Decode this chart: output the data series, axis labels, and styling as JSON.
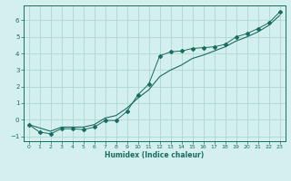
{
  "xlabel": "Humidex (Indice chaleur)",
  "ylabel": "",
  "bg_color": "#d4f0ee",
  "grid_color": "#b0d8d4",
  "line_color": "#1a6b60",
  "x_data": [
    0,
    1,
    2,
    3,
    4,
    5,
    6,
    7,
    8,
    9,
    10,
    11,
    12,
    13,
    14,
    15,
    16,
    17,
    18,
    19,
    20,
    21,
    22,
    23
  ],
  "y_data": [
    -0.3,
    -0.75,
    -0.85,
    -0.55,
    -0.55,
    -0.6,
    -0.45,
    -0.05,
    -0.05,
    0.5,
    1.5,
    2.15,
    3.85,
    4.1,
    4.15,
    4.3,
    4.35,
    4.4,
    4.55,
    5.0,
    5.2,
    5.5,
    5.85,
    6.5
  ],
  "y_trend": [
    -0.3,
    -0.5,
    -0.7,
    -0.45,
    -0.45,
    -0.45,
    -0.3,
    0.1,
    0.25,
    0.7,
    1.3,
    1.8,
    2.6,
    3.0,
    3.3,
    3.7,
    3.9,
    4.15,
    4.4,
    4.75,
    5.0,
    5.3,
    5.7,
    6.3
  ],
  "xlim": [
    -0.5,
    23.5
  ],
  "ylim": [
    -1.3,
    6.9
  ],
  "yticks": [
    -1,
    0,
    1,
    2,
    3,
    4,
    5,
    6
  ],
  "xticks": [
    0,
    1,
    2,
    3,
    4,
    5,
    6,
    7,
    8,
    9,
    10,
    11,
    12,
    13,
    14,
    15,
    16,
    17,
    18,
    19,
    20,
    21,
    22,
    23
  ],
  "xlabel_fontsize": 5.5,
  "tick_fontsize": 4.5
}
